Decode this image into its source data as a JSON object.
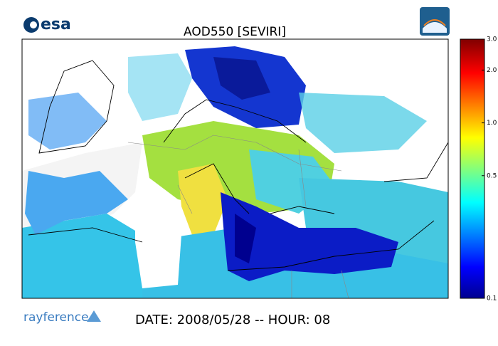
{
  "header": {
    "logo": "esa",
    "title": "AOD550   [SEVIRI]"
  },
  "colorbar": {
    "scale": "log",
    "lim": [
      0.1,
      3.0
    ],
    "ticks": [
      {
        "value": 3,
        "label": "3.0"
      },
      {
        "value": 2,
        "label": "2.0"
      },
      {
        "value": 1,
        "label": "1.0"
      },
      {
        "value": 0.5,
        "label": "0.5"
      },
      {
        "value": 0.1,
        "label": "0.1"
      }
    ]
  },
  "footer": {
    "logo": "rayference",
    "date": "DATE: 2008/05/28 -- HOUR: 08"
  }
}
